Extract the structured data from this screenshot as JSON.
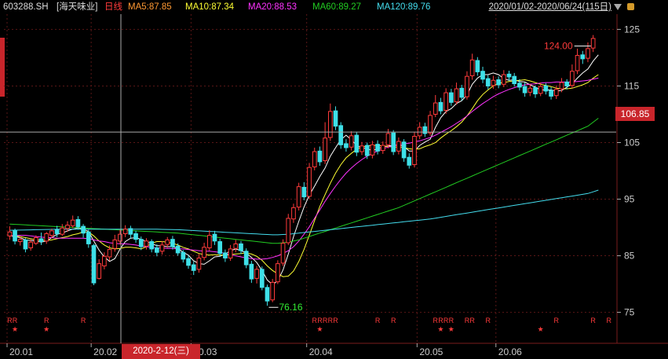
{
  "header": {
    "symbol": "603288.SH",
    "name": "[海天味业]",
    "period": "日线",
    "ma5": "MA5:87.85",
    "ma10": "MA10:87.34",
    "ma20": "MA20:88.53",
    "ma60": "MA60:89.27",
    "ma120": "MA120:89.76",
    "range": "2020/01/02-2020/06/24(115日)"
  },
  "colors": {
    "up": "#ff3b3b",
    "down": "#3ee0e8",
    "ma5": "#ffffff",
    "ma10": "#ffff33",
    "ma20": "#ff33ff",
    "ma60": "#22cc22",
    "ma120": "#44ddee",
    "grid": "#5a1616",
    "label_high": "#ff3b3b",
    "label_low": "#33ee33",
    "ma5_text": "#ff9933"
  },
  "crosshair": {
    "price_label": "106.85",
    "date_label": "2020-2-12(三)"
  },
  "markers": {
    "r_label": "R",
    "star_label": "★"
  },
  "chart_data": {
    "type": "candlestick",
    "y_ticks": [
      "125",
      "115",
      "105",
      "95",
      "85",
      "75"
    ],
    "ylim": [
      73,
      127
    ],
    "x_ticks": [
      {
        "label": "20.01",
        "index": 0
      },
      {
        "label": "20.02",
        "index": 16
      },
      {
        "label": "20.03",
        "index": 35
      },
      {
        "label": "20.04",
        "index": 57
      },
      {
        "label": "20.05",
        "index": 78
      },
      {
        "label": "20.06",
        "index": 93
      }
    ],
    "high_label": "124.00",
    "low_label": "76.16",
    "candles": [
      [
        88.5,
        89.2,
        90.2,
        87.8
      ],
      [
        89.4,
        87.6,
        89.8,
        87.0
      ],
      [
        87.5,
        87.9,
        88.4,
        86.8
      ],
      [
        87.8,
        86.2,
        88.1,
        85.6
      ],
      [
        86.4,
        87.4,
        87.9,
        85.9
      ],
      [
        87.2,
        88.2,
        88.6,
        86.9
      ],
      [
        88.0,
        87.5,
        89.1,
        86.9
      ],
      [
        87.6,
        88.9,
        89.2,
        87.1
      ],
      [
        88.6,
        89.4,
        89.8,
        88.1
      ],
      [
        89.6,
        88.9,
        90.3,
        88.3
      ],
      [
        88.8,
        89.9,
        90.6,
        88.5
      ],
      [
        89.8,
        90.4,
        91.1,
        89.2
      ],
      [
        90.3,
        91.3,
        92.1,
        89.9
      ],
      [
        91.4,
        90.1,
        92.0,
        89.6
      ],
      [
        90.2,
        89.0,
        90.6,
        88.2
      ],
      [
        89.2,
        87.1,
        89.6,
        86.4
      ],
      [
        86.8,
        80.2,
        87.1,
        79.8
      ],
      [
        81.0,
        83.6,
        84.4,
        80.8
      ],
      [
        83.2,
        84.9,
        85.6,
        82.6
      ],
      [
        84.8,
        86.1,
        86.8,
        84.1
      ],
      [
        86.3,
        87.8,
        88.7,
        85.7
      ],
      [
        87.6,
        88.8,
        89.6,
        87.0
      ],
      [
        88.9,
        89.7,
        90.4,
        88.3
      ],
      [
        89.8,
        88.8,
        90.3,
        88.1
      ],
      [
        88.9,
        87.9,
        89.4,
        87.3
      ],
      [
        87.9,
        86.6,
        88.4,
        86.0
      ],
      [
        86.7,
        87.6,
        88.1,
        86.1
      ],
      [
        87.5,
        86.2,
        87.9,
        85.6
      ],
      [
        86.4,
        85.6,
        87.0,
        84.9
      ],
      [
        85.8,
        86.9,
        87.6,
        85.2
      ],
      [
        87.0,
        87.8,
        88.3,
        86.4
      ],
      [
        87.9,
        86.6,
        88.5,
        86.1
      ],
      [
        86.7,
        85.5,
        87.2,
        85.0
      ],
      [
        85.6,
        84.4,
        86.0,
        83.8
      ],
      [
        84.5,
        83.3,
        85.1,
        82.7
      ],
      [
        83.4,
        82.4,
        84.0,
        81.6
      ],
      [
        82.6,
        84.6,
        85.3,
        82.0
      ],
      [
        84.7,
        86.5,
        87.3,
        84.2
      ],
      [
        86.4,
        88.6,
        89.5,
        85.9
      ],
      [
        88.8,
        87.6,
        89.4,
        86.9
      ],
      [
        87.5,
        85.4,
        88.0,
        84.8
      ],
      [
        85.5,
        84.6,
        86.1,
        83.9
      ],
      [
        84.6,
        86.2,
        86.9,
        84.1
      ],
      [
        86.3,
        87.1,
        87.8,
        85.6
      ],
      [
        87.1,
        85.9,
        87.6,
        85.3
      ],
      [
        85.8,
        83.4,
        86.3,
        82.8
      ],
      [
        83.5,
        80.9,
        84.1,
        80.2
      ],
      [
        81.0,
        82.6,
        83.2,
        80.1
      ],
      [
        82.6,
        79.4,
        83.1,
        78.9
      ],
      [
        79.4,
        77.0,
        79.9,
        76.16
      ],
      [
        77.2,
        80.3,
        80.9,
        76.8
      ],
      [
        80.4,
        83.6,
        84.2,
        80.0
      ],
      [
        83.7,
        87.2,
        87.9,
        83.2
      ],
      [
        87.3,
        91.6,
        92.4,
        86.9
      ],
      [
        91.5,
        93.5,
        94.2,
        90.8
      ],
      [
        93.6,
        97.2,
        97.9,
        93.0
      ],
      [
        97.1,
        95.4,
        98.0,
        94.8
      ],
      [
        95.5,
        100.6,
        101.4,
        95.0
      ],
      [
        100.7,
        103.4,
        104.1,
        100.1
      ],
      [
        103.5,
        101.6,
        104.3,
        100.9
      ],
      [
        101.8,
        105.8,
        108.6,
        101.2
      ],
      [
        105.9,
        110.5,
        111.9,
        105.3
      ],
      [
        110.6,
        107.9,
        111.4,
        107.2
      ],
      [
        108.0,
        104.6,
        108.6,
        103.9
      ],
      [
        104.8,
        104.1,
        105.6,
        103.4
      ],
      [
        104.2,
        106.2,
        107.0,
        103.6
      ],
      [
        106.3,
        103.3,
        106.9,
        102.6
      ],
      [
        103.4,
        104.4,
        105.1,
        102.8
      ],
      [
        104.5,
        102.7,
        105.0,
        102.1
      ],
      [
        102.8,
        104.6,
        105.3,
        102.2
      ],
      [
        104.7,
        103.5,
        105.4,
        102.9
      ],
      [
        103.6,
        104.5,
        105.2,
        103.0
      ],
      [
        104.6,
        106.6,
        107.4,
        104.0
      ],
      [
        106.7,
        103.4,
        107.2,
        102.8
      ],
      [
        103.5,
        105.2,
        105.9,
        102.9
      ],
      [
        105.1,
        102.3,
        105.6,
        101.6
      ],
      [
        102.4,
        101.0,
        103.1,
        100.4
      ],
      [
        101.1,
        106.1,
        106.9,
        100.6
      ],
      [
        106.2,
        107.7,
        108.6,
        105.6
      ],
      [
        107.8,
        106.6,
        108.5,
        106.0
      ],
      [
        106.7,
        109.8,
        110.6,
        106.2
      ],
      [
        110.0,
        112.0,
        113.4,
        109.5
      ],
      [
        112.1,
        110.6,
        112.9,
        110.0
      ],
      [
        110.7,
        113.8,
        114.6,
        110.1
      ],
      [
        113.8,
        112.1,
        114.5,
        111.5
      ],
      [
        112.2,
        114.5,
        115.6,
        111.7
      ],
      [
        114.6,
        113.0,
        115.2,
        112.4
      ],
      [
        113.1,
        116.7,
        117.6,
        112.6
      ],
      [
        116.8,
        119.6,
        120.7,
        116.1
      ],
      [
        119.5,
        117.5,
        120.1,
        116.8
      ],
      [
        117.6,
        116.2,
        118.4,
        115.5
      ],
      [
        116.3,
        115.0,
        116.9,
        114.4
      ],
      [
        115.1,
        116.0,
        116.8,
        114.5
      ],
      [
        116.1,
        115.2,
        116.7,
        114.6
      ],
      [
        115.3,
        117.0,
        117.8,
        114.8
      ],
      [
        117.1,
        116.6,
        117.7,
        115.9
      ],
      [
        116.7,
        115.4,
        117.3,
        114.9
      ],
      [
        115.5,
        114.8,
        116.2,
        114.2
      ],
      [
        114.9,
        113.8,
        115.6,
        113.1
      ],
      [
        113.9,
        114.6,
        115.3,
        113.2
      ],
      [
        114.7,
        113.6,
        115.1,
        112.9
      ],
      [
        113.7,
        114.9,
        115.6,
        113.2
      ],
      [
        115.0,
        114.1,
        115.5,
        113.5
      ],
      [
        114.2,
        113.2,
        114.8,
        112.6
      ],
      [
        113.3,
        114.4,
        115.1,
        112.7
      ],
      [
        114.5,
        115.6,
        116.4,
        113.9
      ],
      [
        115.7,
        115.0,
        116.2,
        114.4
      ],
      [
        115.1,
        117.6,
        118.8,
        114.6
      ],
      [
        117.7,
        120.4,
        121.6,
        117.1
      ],
      [
        120.5,
        119.8,
        121.2,
        118.9
      ],
      [
        119.9,
        121.6,
        122.7,
        119.2
      ],
      [
        121.7,
        123.4,
        124.0,
        121.0
      ]
    ],
    "r_markers": [
      0,
      1,
      7,
      14,
      58,
      59,
      60,
      61,
      62,
      70,
      73,
      81,
      82,
      83,
      84,
      87,
      88,
      91,
      104,
      111,
      114
    ],
    "star_markers": [
      1,
      7,
      59,
      82,
      84,
      101
    ],
    "ma_series": [
      {
        "name": "MA5",
        "values": [
          88.5,
          88.4,
          88.2,
          87.8,
          87.7,
          87.6,
          87.4,
          87.6,
          88.2,
          88.8,
          89.0,
          89.4,
          89.7,
          89.9,
          89.7,
          89.3,
          87.6,
          86.0,
          84.8,
          84.0,
          84.5,
          86.2,
          87.5,
          88.1,
          88.2,
          87.9,
          87.5,
          87.1,
          86.8,
          86.7,
          86.6,
          86.6,
          86.3,
          85.6,
          85.1,
          84.1,
          83.6,
          83.5,
          84.1,
          84.8,
          84.9,
          85.3,
          85.9,
          86.2,
          85.9,
          85.5,
          84.7,
          83.8,
          82.4,
          80.7,
          79.9,
          80.6,
          82.5,
          85.3,
          88.4,
          91.1,
          93.6,
          95.7,
          97.3,
          99.0,
          100.5,
          102.6,
          104.1,
          105.5,
          106.3,
          105.5,
          104.5,
          104.1,
          103.9,
          103.6,
          103.9,
          104.2,
          104.4,
          104.5,
          104.6,
          104.3,
          103.5,
          103.5,
          104.5,
          105.1,
          105.6,
          107.7,
          109.4,
          110.5,
          111.0,
          111.9,
          112.4,
          113.4,
          115.3,
          116.4,
          117.0,
          117.0,
          117.3,
          117.0,
          116.3,
          116.0,
          116.1,
          115.8,
          115.7,
          115.2,
          114.8,
          114.3,
          114.3,
          114.3,
          114.1,
          114.2,
          114.8,
          115.4,
          116.4,
          117.3,
          118.0,
          119.4,
          120.5
        ]
      },
      {
        "name": "MA10",
        "values": [
          88.5,
          88.5,
          88.4,
          88.2,
          88.0,
          87.8,
          87.7,
          87.7,
          87.8,
          88.0,
          88.2,
          88.4,
          88.7,
          88.9,
          89.2,
          89.2,
          88.5,
          87.6,
          86.9,
          86.4,
          86.2,
          86.3,
          86.5,
          86.5,
          86.4,
          86.2,
          86.6,
          87.2,
          87.5,
          87.5,
          87.4,
          87.2,
          86.9,
          86.5,
          86.2,
          85.8,
          85.4,
          85.2,
          85.1,
          85.2,
          85.1,
          85.1,
          85.2,
          85.3,
          85.4,
          85.5,
          85.3,
          84.9,
          84.2,
          83.2,
          82.4,
          81.8,
          81.3,
          81.4,
          82.3,
          84.0,
          86.1,
          88.6,
          91.2,
          93.7,
          95.8,
          97.8,
          99.6,
          101.1,
          102.3,
          103.1,
          103.8,
          104.2,
          104.4,
          104.5,
          104.5,
          104.4,
          104.3,
          104.2,
          104.2,
          104.1,
          103.9,
          103.8,
          103.9,
          104.3,
          104.6,
          105.0,
          105.8,
          106.5,
          107.1,
          107.8,
          108.6,
          109.7,
          111.0,
          112.4,
          113.5,
          114.3,
          115.0,
          115.5,
          115.6,
          115.8,
          115.9,
          116.0,
          116.1,
          115.9,
          115.6,
          115.3,
          115.1,
          114.9,
          114.6,
          114.5,
          114.5,
          114.6,
          114.9,
          115.2,
          115.6,
          116.4,
          117.0
        ]
      },
      {
        "name": "MA20",
        "values": [
          88.5,
          88.6,
          88.6,
          88.6,
          88.5,
          88.4,
          88.3,
          88.2,
          88.2,
          88.1,
          88.1,
          88.1,
          88.1,
          88.1,
          88.1,
          88.0,
          87.8,
          87.6,
          87.5,
          87.3,
          87.2,
          87.1,
          87.1,
          87.0,
          86.9,
          86.7,
          86.6,
          86.5,
          86.4,
          86.4,
          86.3,
          86.3,
          86.2,
          86.2,
          86.1,
          86.0,
          85.9,
          85.8,
          85.8,
          85.7,
          85.6,
          85.4,
          85.2,
          85.0,
          84.8,
          84.6,
          84.5,
          84.4,
          84.4,
          84.5,
          84.7,
          85.0,
          85.4,
          85.9,
          86.6,
          87.6,
          88.8,
          90.1,
          91.6,
          93.1,
          94.6,
          96.0,
          97.3,
          98.5,
          99.6,
          100.5,
          101.3,
          102.0,
          102.6,
          103.1,
          103.5,
          103.9,
          104.2,
          104.4,
          104.6,
          104.8,
          104.9,
          105.1,
          105.3,
          105.6,
          105.9,
          106.3,
          106.8,
          107.3,
          107.8,
          108.4,
          109.0,
          109.7,
          110.5,
          111.2,
          111.9,
          112.5,
          113.1,
          113.6,
          114.0,
          114.4,
          114.7,
          115.0,
          115.2,
          115.3,
          115.4,
          115.5,
          115.6,
          115.6,
          115.7,
          115.7,
          115.7,
          115.7,
          115.8,
          115.9,
          116.0,
          116.2,
          116.4
        ]
      },
      {
        "name": "MA60",
        "values": [
          90.6,
          90.55,
          90.5,
          90.45,
          90.4,
          90.35,
          90.3,
          90.25,
          90.2,
          90.15,
          90.1,
          90.05,
          90.0,
          89.95,
          89.9,
          89.85,
          89.8,
          89.75,
          89.7,
          89.65,
          89.6,
          89.55,
          89.5,
          89.45,
          89.4,
          89.35,
          89.3,
          89.25,
          89.2,
          89.15,
          89.1,
          89.05,
          89.0,
          88.9,
          88.8,
          88.7,
          88.6,
          88.5,
          88.4,
          88.3,
          88.2,
          88.1,
          88.0,
          87.9,
          87.8,
          87.7,
          87.6,
          87.5,
          87.4,
          87.3,
          87.2,
          87.2,
          87.3,
          87.4,
          87.6,
          87.8,
          88.1,
          88.4,
          88.7,
          89.0,
          89.3,
          89.6,
          89.9,
          90.2,
          90.5,
          90.8,
          91.1,
          91.4,
          91.7,
          92.0,
          92.3,
          92.6,
          92.9,
          93.2,
          93.5,
          93.9,
          94.3,
          94.7,
          95.1,
          95.5,
          95.9,
          96.3,
          96.7,
          97.1,
          97.5,
          97.9,
          98.3,
          98.7,
          99.1,
          99.5,
          99.9,
          100.3,
          100.7,
          101.1,
          101.5,
          101.9,
          102.3,
          102.7,
          103.1,
          103.5,
          103.9,
          104.3,
          104.7,
          105.1,
          105.5,
          105.9,
          106.3,
          106.7,
          107.1,
          107.5,
          107.9,
          108.6,
          109.3
        ]
      },
      {
        "name": "MA120",
        "values": [
          89.5,
          89.52,
          89.54,
          89.56,
          89.58,
          89.6,
          89.62,
          89.64,
          89.66,
          89.68,
          89.7,
          89.7,
          89.7,
          89.7,
          89.7,
          89.7,
          89.7,
          89.7,
          89.7,
          89.7,
          89.7,
          89.7,
          89.7,
          89.7,
          89.7,
          89.7,
          89.7,
          89.7,
          89.68,
          89.66,
          89.64,
          89.62,
          89.6,
          89.55,
          89.5,
          89.45,
          89.4,
          89.35,
          89.3,
          89.25,
          89.2,
          89.15,
          89.1,
          89.05,
          89.0,
          88.95,
          88.9,
          88.85,
          88.8,
          88.75,
          88.7,
          88.7,
          88.75,
          88.8,
          88.9,
          89.0,
          89.1,
          89.2,
          89.3,
          89.4,
          89.5,
          89.6,
          89.7,
          89.8,
          89.9,
          90.0,
          90.1,
          90.2,
          90.3,
          90.4,
          90.5,
          90.6,
          90.7,
          90.8,
          90.9,
          91.0,
          91.1,
          91.2,
          91.3,
          91.4,
          91.5,
          91.65,
          91.8,
          91.95,
          92.1,
          92.25,
          92.4,
          92.55,
          92.7,
          92.85,
          93.0,
          93.15,
          93.3,
          93.45,
          93.6,
          93.75,
          93.9,
          94.05,
          94.2,
          94.35,
          94.5,
          94.65,
          94.8,
          94.95,
          95.1,
          95.25,
          95.4,
          95.55,
          95.7,
          95.85,
          96.0,
          96.3,
          96.6
        ]
      }
    ]
  }
}
